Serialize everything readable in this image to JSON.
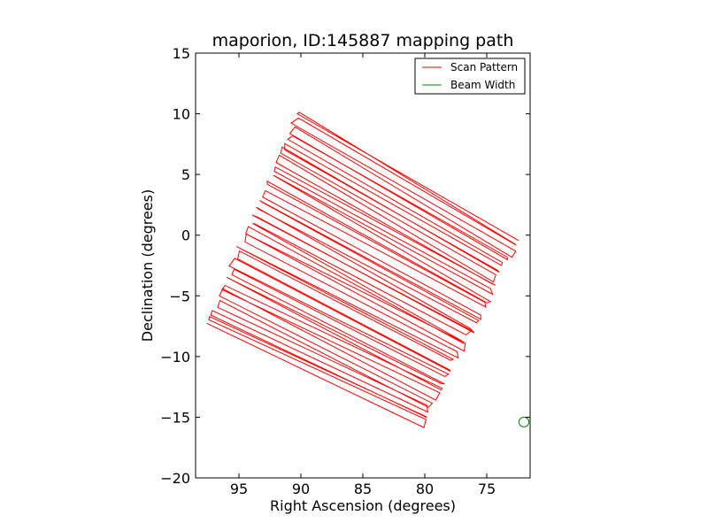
{
  "chart_data": {
    "type": "line",
    "title": "maporion, ID:145887 mapping path",
    "xlabel": "Right Ascension (degrees)",
    "ylabel": "Declination (degrees)",
    "xlim": [
      98.5,
      71.5
    ],
    "ylim": [
      -20,
      15
    ],
    "xticks": [
      95,
      90,
      85,
      80,
      75
    ],
    "xtick_labels": [
      "95",
      "90",
      "85",
      "80",
      "75"
    ],
    "yticks": [
      15,
      10,
      5,
      0,
      -5,
      -10,
      -15,
      -20
    ],
    "ytick_labels": [
      "15",
      "10",
      "5",
      "0",
      "−5",
      "−10",
      "−15",
      "−20"
    ],
    "legend_position": "top-right",
    "grid": false,
    "series": [
      {
        "name": "Scan Pattern",
        "color": "#ff0000",
        "pattern": {
          "scan_count": 55,
          "first_scan_start": [
            97.6,
            -7.3
          ],
          "first_scan_end": [
            80.3,
            -15.7
          ],
          "last_scan_start": [
            90.1,
            10.2
          ],
          "last_scan_end": [
            72.5,
            -0.4
          ],
          "turnaround_jitter": 0.6
        }
      },
      {
        "name": "Beam Width",
        "color": "#008000",
        "center": [
          72.0,
          -15.4
        ],
        "radius": 0.4
      }
    ]
  },
  "legend": {
    "items": [
      {
        "label": "Scan Pattern",
        "color": "#ff0000"
      },
      {
        "label": "Beam Width",
        "color": "#008000"
      }
    ]
  }
}
